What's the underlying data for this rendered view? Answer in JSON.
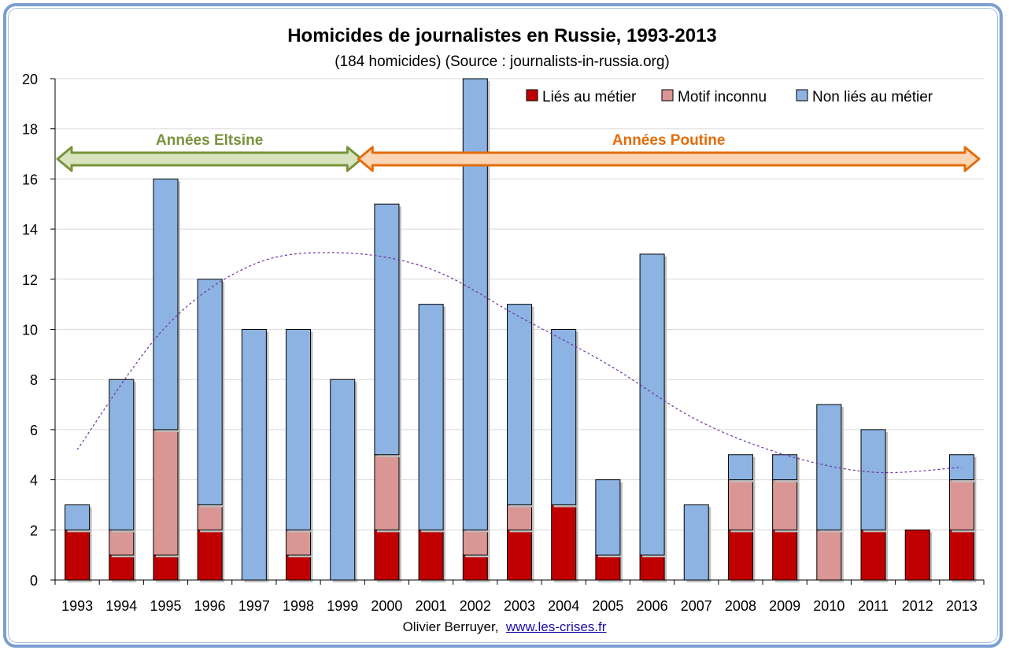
{
  "colors": {
    "lies": "#c00000",
    "inconnu": "#da9694",
    "non_lies": "#8db3e2",
    "eltsine": "#77933c",
    "eltsine_fill": "#d7e4bd",
    "poutine": "#e46c0a",
    "poutine_fill": "#fcd5b5",
    "trend": "#7030a0"
  },
  "chart_data": {
    "type": "bar",
    "stacked": true,
    "title": "Homicides de journalistes en Russie, 1993-2013",
    "subtitle": "(184 homicides) (Source : journalists-in-russia.org)",
    "categories": [
      "1993",
      "1994",
      "1995",
      "1996",
      "1997",
      "1998",
      "1999",
      "2000",
      "2001",
      "2002",
      "2003",
      "2004",
      "2005",
      "2006",
      "2007",
      "2008",
      "2009",
      "2010",
      "2011",
      "2012",
      "2013"
    ],
    "series": [
      {
        "name": "Liés au métier",
        "values": [
          2,
          1,
          1,
          2,
          0,
          1,
          0,
          2,
          2,
          1,
          2,
          3,
          1,
          1,
          0,
          2,
          2,
          0,
          2,
          2,
          2
        ]
      },
      {
        "name": "Motif inconnu",
        "values": [
          0,
          1,
          5,
          1,
          0,
          1,
          0,
          3,
          0,
          1,
          1,
          0,
          0,
          0,
          0,
          2,
          2,
          2,
          0,
          0,
          2
        ]
      },
      {
        "name": "Non liés au métier",
        "values": [
          1,
          6,
          10,
          9,
          10,
          8,
          8,
          10,
          9,
          18,
          8,
          7,
          3,
          12,
          3,
          1,
          1,
          5,
          4,
          0,
          1
        ]
      }
    ],
    "ylim": [
      0,
      20
    ],
    "yticks": [
      0,
      2,
      4,
      6,
      8,
      10,
      12,
      14,
      16,
      18,
      20
    ],
    "grid": true,
    "legend": "top-right",
    "trendline": {
      "style": "dotted",
      "points": [
        [
          1993,
          5.2
        ],
        [
          1995,
          10.1
        ],
        [
          1997,
          12.6
        ],
        [
          1999,
          13.05
        ],
        [
          2001,
          12.4
        ],
        [
          2003,
          10.5
        ],
        [
          2005,
          8.6
        ],
        [
          2007,
          6.4
        ],
        [
          2009,
          5.0
        ],
        [
          2011,
          4.3
        ],
        [
          2013,
          4.5
        ]
      ]
    },
    "annotations": [
      {
        "label": "Années Eltsine",
        "from": "1993",
        "to": "1999"
      },
      {
        "label": "Années Poutine",
        "from": "2000",
        "to": "2013"
      }
    ]
  },
  "credit": {
    "author": "Olivier Berruyer,",
    "link": "www.les-crises.fr"
  }
}
